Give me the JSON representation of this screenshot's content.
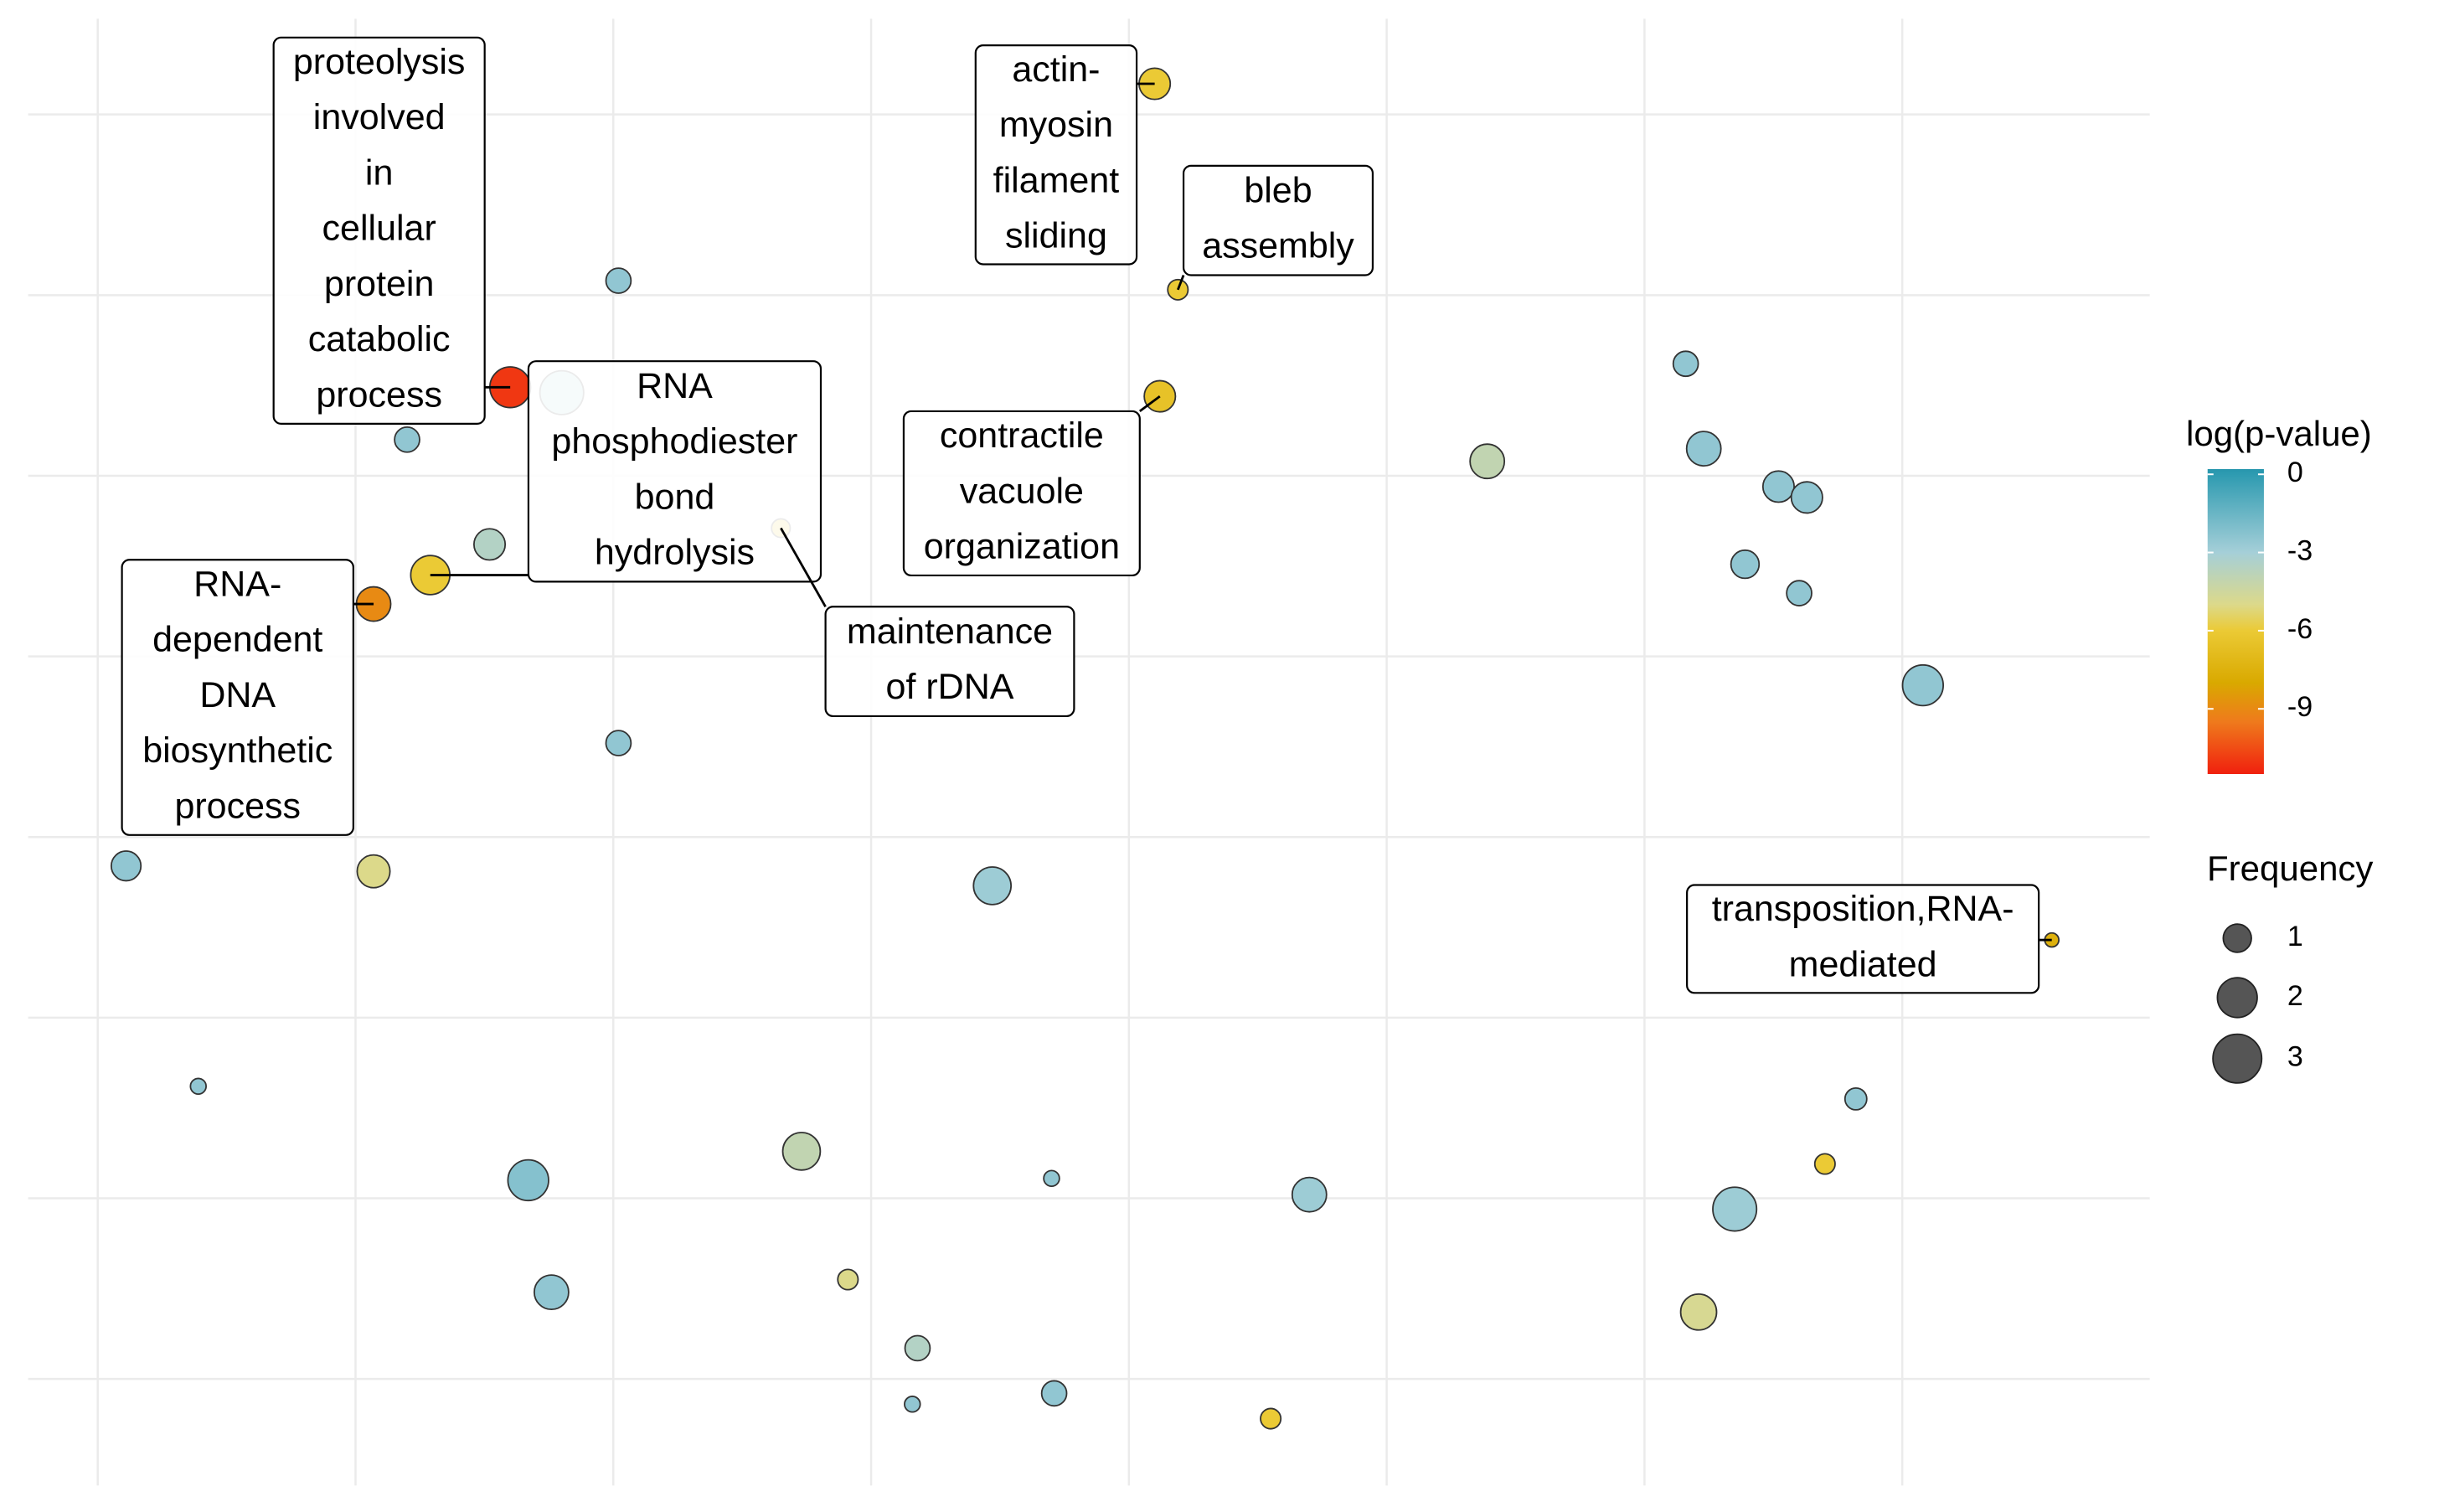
{
  "chart_data": {
    "type": "scatter",
    "x": [
      4.1,
      2.02,
      4.19,
      1.6,
      1.8,
      1.2,
      4.12,
      6.16,
      6.23,
      5.39,
      6.52,
      6.63,
      1.52,
      1.29,
      2.65,
      1.07,
      6.39,
      6.6,
      7.08,
      2.02,
      0.11,
      1.07,
      3.47,
      7.58,
      0.39,
      6.82,
      2.73,
      6.7,
      3.7,
      1.67,
      4.7,
      6.35,
      1.76,
      2.91,
      6.21,
      3.18,
      3.71,
      3.16,
      4.55
    ],
    "y": [
      7.17,
      6.08,
      6.03,
      5.49,
      5.46,
      5.2,
      5.44,
      5.62,
      5.15,
      5.08,
      4.94,
      4.88,
      4.62,
      4.45,
      4.71,
      4.29,
      4.51,
      4.35,
      3.84,
      3.52,
      2.84,
      2.81,
      2.73,
      2.43,
      1.62,
      1.55,
      1.26,
      1.19,
      1.11,
      1.1,
      1.02,
      0.94,
      0.48,
      0.55,
      0.37,
      0.17,
      -0.08,
      -0.14,
      -0.22
    ],
    "size": [
      1.23,
      0.79,
      0.52,
      2.09,
      2.42,
      0.79,
      1.23,
      0.79,
      1.49,
      1.49,
      1.23,
      1.23,
      1.23,
      1.93,
      0.44,
      1.49,
      1.0,
      0.79,
      2.09,
      0.79,
      1.11,
      1.36,
      1.78,
      0.25,
      0.31,
      0.6,
      1.78,
      0.52,
      0.31,
      2.09,
      1.49,
      2.42,
      1.49,
      0.52,
      1.63,
      0.79,
      0.79,
      0.31,
      0.52
    ],
    "color_values": [
      -6,
      -2.5,
      -6,
      -11,
      -3,
      -2.5,
      -6.5,
      -2.5,
      -2.5,
      -4,
      -2.5,
      -2.5,
      -3.5,
      -6,
      -6,
      -9,
      -2.5,
      -2.5,
      -2.5,
      -2.5,
      -2.5,
      -5,
      -2.8,
      -7.5,
      -2.5,
      -2.5,
      -4,
      -6,
      -2.5,
      -2.2,
      -2.8,
      -2.8,
      -2.5,
      -5,
      -4.8,
      -3.5,
      -2.5,
      -2.5,
      -6
    ],
    "labels": [
      [
        "actin-",
        "myosin",
        "filament",
        "sliding"
      ],
      null,
      [
        "bleb",
        "assembly"
      ],
      [
        "proteolysis",
        "involved",
        "in",
        "cellular",
        "protein",
        "catabolic",
        "process"
      ],
      null,
      null,
      [
        "contractile",
        "vacuole",
        "organization"
      ],
      null,
      null,
      null,
      null,
      null,
      null,
      [
        "RNA",
        "phosphodiester",
        "bond",
        "hydrolysis"
      ],
      [
        "maintenance",
        "of rDNA"
      ],
      [
        "RNA-",
        "dependent",
        "DNA",
        "biosynthetic",
        "process"
      ],
      null,
      null,
      null,
      null,
      null,
      null,
      null,
      [
        "transposition,RNA-",
        "mediated"
      ],
      null,
      null,
      null,
      null,
      null,
      null,
      null,
      null,
      null,
      null,
      null,
      null,
      null,
      null,
      null
    ],
    "xlim": [
      -0.27,
      7.96
    ],
    "ylim": [
      -0.59,
      7.53
    ],
    "xticks": [
      0,
      1,
      2,
      3,
      4,
      5,
      6,
      7
    ],
    "yticks": [
      0,
      1,
      2,
      3,
      4,
      5,
      6,
      7
    ],
    "grid": true,
    "color_legend": {
      "title": "log(p-value)",
      "ticks": [
        0,
        -3,
        -6,
        -9
      ],
      "lim": [
        -11.5,
        0.2
      ],
      "colorscale": [
        [
          0.2,
          "#2796ad"
        ],
        [
          0,
          "#2e9bb1"
        ],
        [
          -3,
          "#a5cfd8"
        ],
        [
          -5,
          "#dcd98a"
        ],
        [
          -6,
          "#ebca35"
        ],
        [
          -8,
          "#d9a900"
        ],
        [
          -9.5,
          "#ef7a1c"
        ],
        [
          -11.5,
          "#f0200e"
        ]
      ]
    },
    "size_legend": {
      "title": "Frequency",
      "values": [
        1,
        2,
        3
      ]
    }
  }
}
